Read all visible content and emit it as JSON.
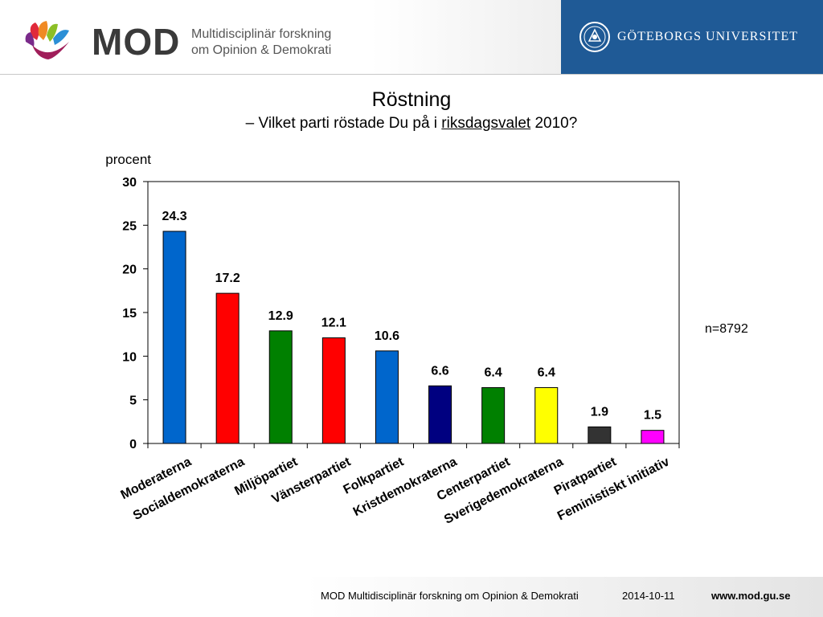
{
  "header": {
    "brand": "MOD",
    "brand_sub_line1": "Multidisciplinär forskning",
    "brand_sub_line2": "om Opinion & Demokrati",
    "university": "GÖTEBORGS UNIVERSITET"
  },
  "slide": {
    "title": "Röstning",
    "subtitle_pre": "– Vilket parti röstade Du på i ",
    "subtitle_underlined": "riksdagsvalet",
    "subtitle_post": " 2010?",
    "n_label": "n=8792"
  },
  "footer": {
    "org": "MOD Multidisciplinär forskning om Opinion & Demokrati",
    "date": "2014-10-11",
    "url": "www.mod.gu.se"
  },
  "chart_data": {
    "type": "bar",
    "ylabel": "procent",
    "ylim": [
      0,
      30
    ],
    "yticks": [
      0,
      5,
      10,
      15,
      20,
      25,
      30
    ],
    "grid": false,
    "categories": [
      "Moderaterna",
      "Socialdemokraterna",
      "Miljöpartiet",
      "Vänsterpartiet",
      "Folkpartiet",
      "Kristdemokraterna",
      "Centerpartiet",
      "Sverigedemokraterna",
      "Piratpartiet",
      "Feministiskt initiativ"
    ],
    "values": [
      24.3,
      17.2,
      12.9,
      12.1,
      10.6,
      6.6,
      6.4,
      6.4,
      1.9,
      1.5
    ],
    "value_labels": [
      "24.3",
      "17.2",
      "12.9",
      "12.1",
      "10.6",
      "6.6",
      "6.4",
      "6.4",
      "1.9",
      "1.5"
    ],
    "colors": [
      "#0066cc",
      "#ff0000",
      "#008000",
      "#ff0000",
      "#0066cc",
      "#000080",
      "#008000",
      "#ffff00",
      "#333333",
      "#ff00ff"
    ]
  }
}
